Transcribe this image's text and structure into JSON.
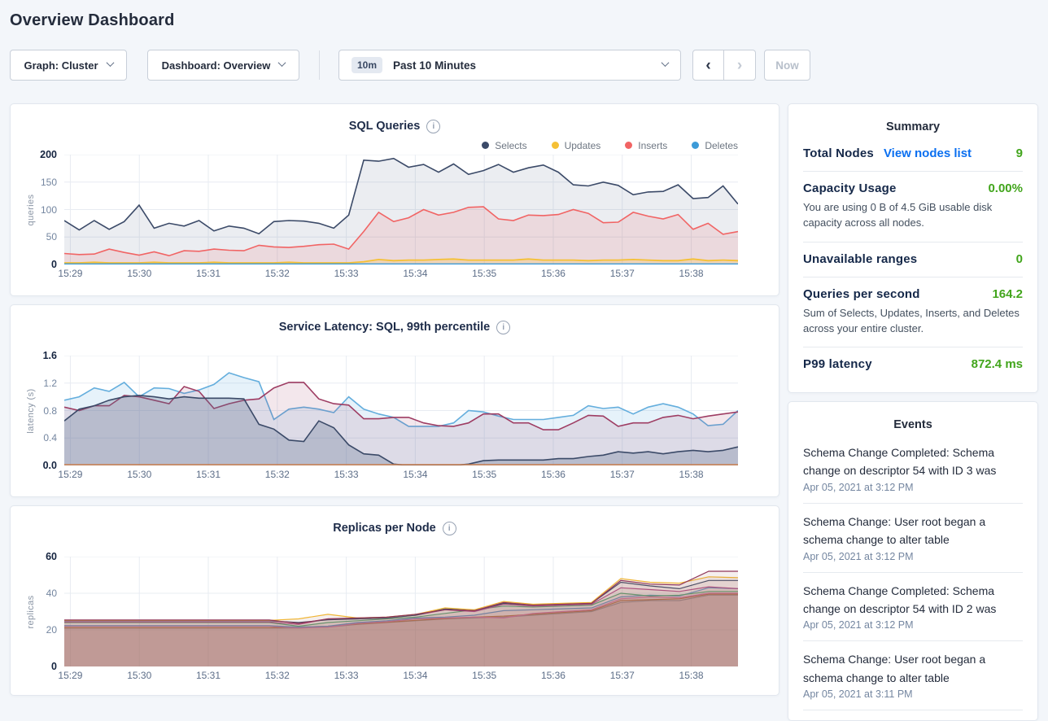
{
  "header": {
    "title": "Overview Dashboard"
  },
  "controls": {
    "graph_dropdown": "Graph: Cluster",
    "dashboard_dropdown": "Dashboard: Overview",
    "time_badge": "10m",
    "time_label": "Past 10 Minutes",
    "now_label": "Now"
  },
  "icons": {
    "info": "i",
    "chevron_left": "‹",
    "chevron_right": "›"
  },
  "colors": {
    "value_green": "#42a51c",
    "link_blue": "#0a6ff0",
    "selects": "#3b4a68",
    "updates": "#f5c035",
    "inserts": "#f16464",
    "deletes": "#3d9bd8"
  },
  "charts": [
    {
      "id": "sql-queries",
      "title": "SQL Queries",
      "ylabel": "queries",
      "ymax": 200,
      "yticks": [
        "0",
        "50",
        "100",
        "150",
        "200"
      ],
      "xticks": [
        "15:29",
        "15:30",
        "15:31",
        "15:32",
        "15:33",
        "15:34",
        "15:35",
        "15:36",
        "15:37",
        "15:38"
      ],
      "legend": [
        {
          "label": "Selects",
          "color": "#3b4a68"
        },
        {
          "label": "Updates",
          "color": "#f5c035"
        },
        {
          "label": "Inserts",
          "color": "#f16464"
        },
        {
          "label": "Deletes",
          "color": "#3d9bd8"
        }
      ],
      "series": [
        {
          "name": "selects",
          "color": "#3b4a68",
          "fill": "rgba(90,106,140,0.12)",
          "width": 1.6,
          "values": [
            80,
            63,
            80,
            64,
            78,
            108,
            66,
            75,
            70,
            80,
            61,
            70,
            66,
            56,
            78,
            80,
            79,
            75,
            66,
            90,
            190,
            188,
            193,
            177,
            182,
            168,
            183,
            164,
            171,
            182,
            168,
            176,
            181,
            168,
            145,
            143,
            150,
            144,
            127,
            132,
            133,
            145,
            120,
            122,
            143,
            110
          ]
        },
        {
          "name": "inserts",
          "color": "#f16464",
          "fill": "rgba(241,100,100,0.14)",
          "width": 1.6,
          "values": [
            20,
            18,
            19,
            28,
            22,
            17,
            23,
            16,
            25,
            24,
            28,
            26,
            25,
            35,
            32,
            31,
            33,
            36,
            37,
            28,
            60,
            95,
            78,
            85,
            100,
            90,
            95,
            104,
            105,
            83,
            80,
            90,
            89,
            91,
            100,
            93,
            76,
            77,
            95,
            88,
            83,
            91,
            64,
            75,
            55,
            60
          ]
        },
        {
          "name": "updates",
          "color": "#f5c035",
          "fill": "rgba(255,197,61,0.25)",
          "width": 1.8,
          "values": [
            3,
            3,
            4,
            3,
            3,
            3,
            4,
            3,
            3,
            3,
            4,
            3,
            3,
            3,
            3,
            4,
            3,
            3,
            3,
            3,
            5,
            9,
            7,
            8,
            8,
            9,
            10,
            8,
            8,
            8,
            8,
            10,
            8,
            8,
            8,
            7,
            8,
            8,
            9,
            8,
            7,
            7,
            10,
            7,
            8,
            7
          ]
        },
        {
          "name": "deletes",
          "color": "#3d9bd8",
          "fill": "rgba(61,155,216,0.18)",
          "width": 1.4,
          "values": [
            1,
            1
          ]
        }
      ]
    },
    {
      "id": "service-latency",
      "title": "Service Latency: SQL, 99th percentile",
      "ylabel": "latency (s)",
      "ymax": 1.6,
      "yticks": [
        "0.0",
        "0.4",
        "0.8",
        "1.2",
        "1.6"
      ],
      "xticks": [
        "15:29",
        "15:30",
        "15:31",
        "15:32",
        "15:33",
        "15:34",
        "15:35",
        "15:36",
        "15:37",
        "15:38"
      ],
      "series": [
        {
          "name": "latency-blue",
          "color": "#64aedd",
          "fill": "rgba(100,174,221,0.16)",
          "width": 1.6,
          "values": [
            0.95,
            1.0,
            1.13,
            1.08,
            1.21,
            1.0,
            1.13,
            1.12,
            1.05,
            1.1,
            1.18,
            1.35,
            1.28,
            1.22,
            0.67,
            0.82,
            0.85,
            0.82,
            0.77,
            1.0,
            0.82,
            0.75,
            0.7,
            0.57,
            0.57,
            0.57,
            0.62,
            0.8,
            0.78,
            0.72,
            0.67,
            0.67,
            0.67,
            0.7,
            0.73,
            0.87,
            0.83,
            0.85,
            0.75,
            0.85,
            0.9,
            0.85,
            0.75,
            0.58,
            0.6,
            0.8
          ]
        },
        {
          "name": "latency-maroon",
          "color": "#9e3d63",
          "fill": "rgba(158,61,99,0.12)",
          "width": 1.6,
          "values": [
            0.85,
            0.8,
            0.87,
            0.87,
            1.02,
            1.0,
            0.95,
            0.9,
            1.15,
            1.08,
            0.83,
            0.9,
            0.95,
            0.97,
            1.13,
            1.21,
            1.21,
            0.97,
            0.9,
            0.88,
            0.68,
            0.68,
            0.7,
            0.7,
            0.62,
            0.58,
            0.57,
            0.62,
            0.75,
            0.75,
            0.62,
            0.62,
            0.52,
            0.52,
            0.62,
            0.73,
            0.72,
            0.57,
            0.62,
            0.62,
            0.7,
            0.73,
            0.68,
            0.72,
            0.75,
            0.78
          ]
        },
        {
          "name": "latency-navy",
          "color": "#3b4a68",
          "fill": "rgba(90,106,140,0.28)",
          "width": 1.6,
          "values": [
            0.65,
            0.82,
            0.87,
            0.95,
            1.0,
            1.02,
            1.0,
            0.97,
            1.0,
            0.98,
            0.98,
            0.98,
            0.97,
            0.6,
            0.53,
            0.37,
            0.35,
            0.65,
            0.55,
            0.3,
            0.17,
            0.15,
            0.02,
            0,
            0,
            0,
            0,
            0.02,
            0.07,
            0.08,
            0.08,
            0.08,
            0.08,
            0.1,
            0.1,
            0.13,
            0.15,
            0.2,
            0.18,
            0.2,
            0.17,
            0.2,
            0.22,
            0.2,
            0.22,
            0.27
          ]
        },
        {
          "name": "latency-orange-baseline",
          "color": "#c97f4f",
          "width": 1.4,
          "values": [
            0.012,
            0.012
          ]
        }
      ]
    },
    {
      "id": "replicas-per-node",
      "title": "Replicas per Node",
      "ylabel": "replicas",
      "ymax": 60,
      "yticks": [
        "0",
        "20",
        "40",
        "60"
      ],
      "xticks": [
        "15:29",
        "15:30",
        "15:31",
        "15:32",
        "15:33",
        "15:34",
        "15:35",
        "15:36",
        "15:37",
        "15:38"
      ],
      "series": [
        {
          "name": "node-gray",
          "color": "#9aa5b1",
          "fill": "rgba(155,95,85,0.10)",
          "width": 1.2,
          "values": [
            21,
            21,
            21,
            21,
            21,
            21,
            21,
            21,
            21,
            21.5,
            23,
            24,
            25,
            26,
            26.5,
            27,
            28,
            29,
            30,
            35,
            36,
            36,
            39,
            39
          ]
        },
        {
          "name": "node-tan",
          "color": "#bf7b45",
          "fill": "rgba(155,95,85,0.10)",
          "width": 1.2,
          "values": [
            21.2,
            21.2,
            21.2,
            21.2,
            21.2,
            21.2,
            21.2,
            21.2,
            21.5,
            22,
            23.2,
            24.2,
            25.2,
            26.2,
            27,
            27.5,
            28.5,
            29.5,
            30.5,
            36,
            36.5,
            37,
            39.5,
            39.5
          ]
        },
        {
          "name": "node-pink",
          "color": "#e07ab8",
          "fill": "rgba(155,95,85,0.10)",
          "width": 1.2,
          "values": [
            22,
            22,
            22,
            22,
            22,
            22,
            22,
            22,
            21,
            21.5,
            23.5,
            24.5,
            26,
            26.5,
            27,
            26.5,
            29,
            30,
            31,
            37,
            38,
            37.5,
            40,
            40
          ]
        },
        {
          "name": "node-blue",
          "color": "#5b9bd5",
          "fill": "rgba(155,95,85,0.10)",
          "width": 1.2,
          "values": [
            22.3,
            22.3,
            22.3,
            22.3,
            22.3,
            22.3,
            22.3,
            22.3,
            21.5,
            22,
            24,
            25,
            26.5,
            27,
            28,
            30.5,
            31,
            31.5,
            32,
            38,
            39,
            38.5,
            43,
            42.5
          ]
        },
        {
          "name": "node-green",
          "color": "#4fae79",
          "fill": "rgba(155,95,85,0.10)",
          "width": 1.2,
          "values": [
            24,
            24,
            24,
            24,
            24,
            24,
            24,
            24,
            22,
            24,
            25,
            26,
            27,
            29,
            31,
            33,
            32.5,
            33,
            33.5,
            40,
            38.5,
            39,
            41,
            41
          ]
        },
        {
          "name": "node-magenta",
          "color": "#b54f8e",
          "fill": "rgba(155,95,85,0.10)",
          "width": 1.2,
          "values": [
            24.3,
            24.3,
            24.3,
            24.3,
            24.3,
            24.3,
            24.3,
            24.3,
            23,
            26,
            26,
            26.5,
            28,
            31,
            30,
            34,
            33,
            33.5,
            34,
            43,
            42,
            41,
            43.5,
            42.5
          ]
        },
        {
          "name": "node-slate",
          "color": "#3b4a68",
          "fill": "rgba(155,95,85,0.10)",
          "width": 1.2,
          "values": [
            25,
            25,
            25,
            25,
            25,
            25,
            25,
            25,
            24,
            25.5,
            26,
            26.5,
            28,
            31.5,
            30.5,
            34.5,
            33.5,
            34,
            34.5,
            46,
            44,
            42.5,
            47,
            47
          ]
        },
        {
          "name": "node-yellow",
          "color": "#f0b635",
          "fill": "rgba(155,95,85,0.10)",
          "width": 1.2,
          "values": [
            25.2,
            25.2,
            25.2,
            25.2,
            25.2,
            25.2,
            25.2,
            25.2,
            26,
            28.5,
            26.5,
            27,
            28.5,
            32,
            31,
            35.5,
            34,
            34.5,
            35,
            48,
            46,
            45.5,
            49,
            48.5
          ]
        },
        {
          "name": "node-maroon",
          "color": "#8f3557",
          "fill": "rgba(155,95,85,0.10)",
          "width": 1.2,
          "values": [
            25.4,
            25.4,
            25.4,
            25.4,
            25.4,
            25.4,
            25.4,
            25.4,
            23.5,
            26,
            26.5,
            27,
            28.5,
            31,
            30.5,
            35,
            33.5,
            34,
            34.5,
            47,
            45,
            44.5,
            52,
            52
          ]
        }
      ]
    }
  ],
  "summary": {
    "title": "Summary",
    "total_nodes": {
      "label": "Total Nodes",
      "link": "View nodes list",
      "value": "9"
    },
    "capacity": {
      "label": "Capacity Usage",
      "value": "0.00%",
      "description": "You are using 0 B of 4.5 GiB usable disk capacity across all nodes."
    },
    "unavailable": {
      "label": "Unavailable ranges",
      "value": "0"
    },
    "qps": {
      "label": "Queries per second",
      "value": "164.2",
      "description": "Sum of Selects, Updates, Inserts, and Deletes across your entire cluster."
    },
    "p99": {
      "label": "P99 latency",
      "value": "872.4 ms"
    }
  },
  "events": {
    "title": "Events",
    "items": [
      {
        "message": "Schema Change Completed: Schema change on descriptor 54 with ID 3 was",
        "timestamp": "Apr 05, 2021 at 3:12 PM"
      },
      {
        "message": "Schema Change: User root began a schema change to alter table",
        "timestamp": "Apr 05, 2021 at 3:12 PM"
      },
      {
        "message": "Schema Change Completed: Schema change on descriptor 54 with ID 2 was",
        "timestamp": "Apr 05, 2021 at 3:12 PM"
      },
      {
        "message": "Schema Change: User root began a schema change to alter table",
        "timestamp": "Apr 05, 2021 at 3:11 PM"
      }
    ]
  }
}
